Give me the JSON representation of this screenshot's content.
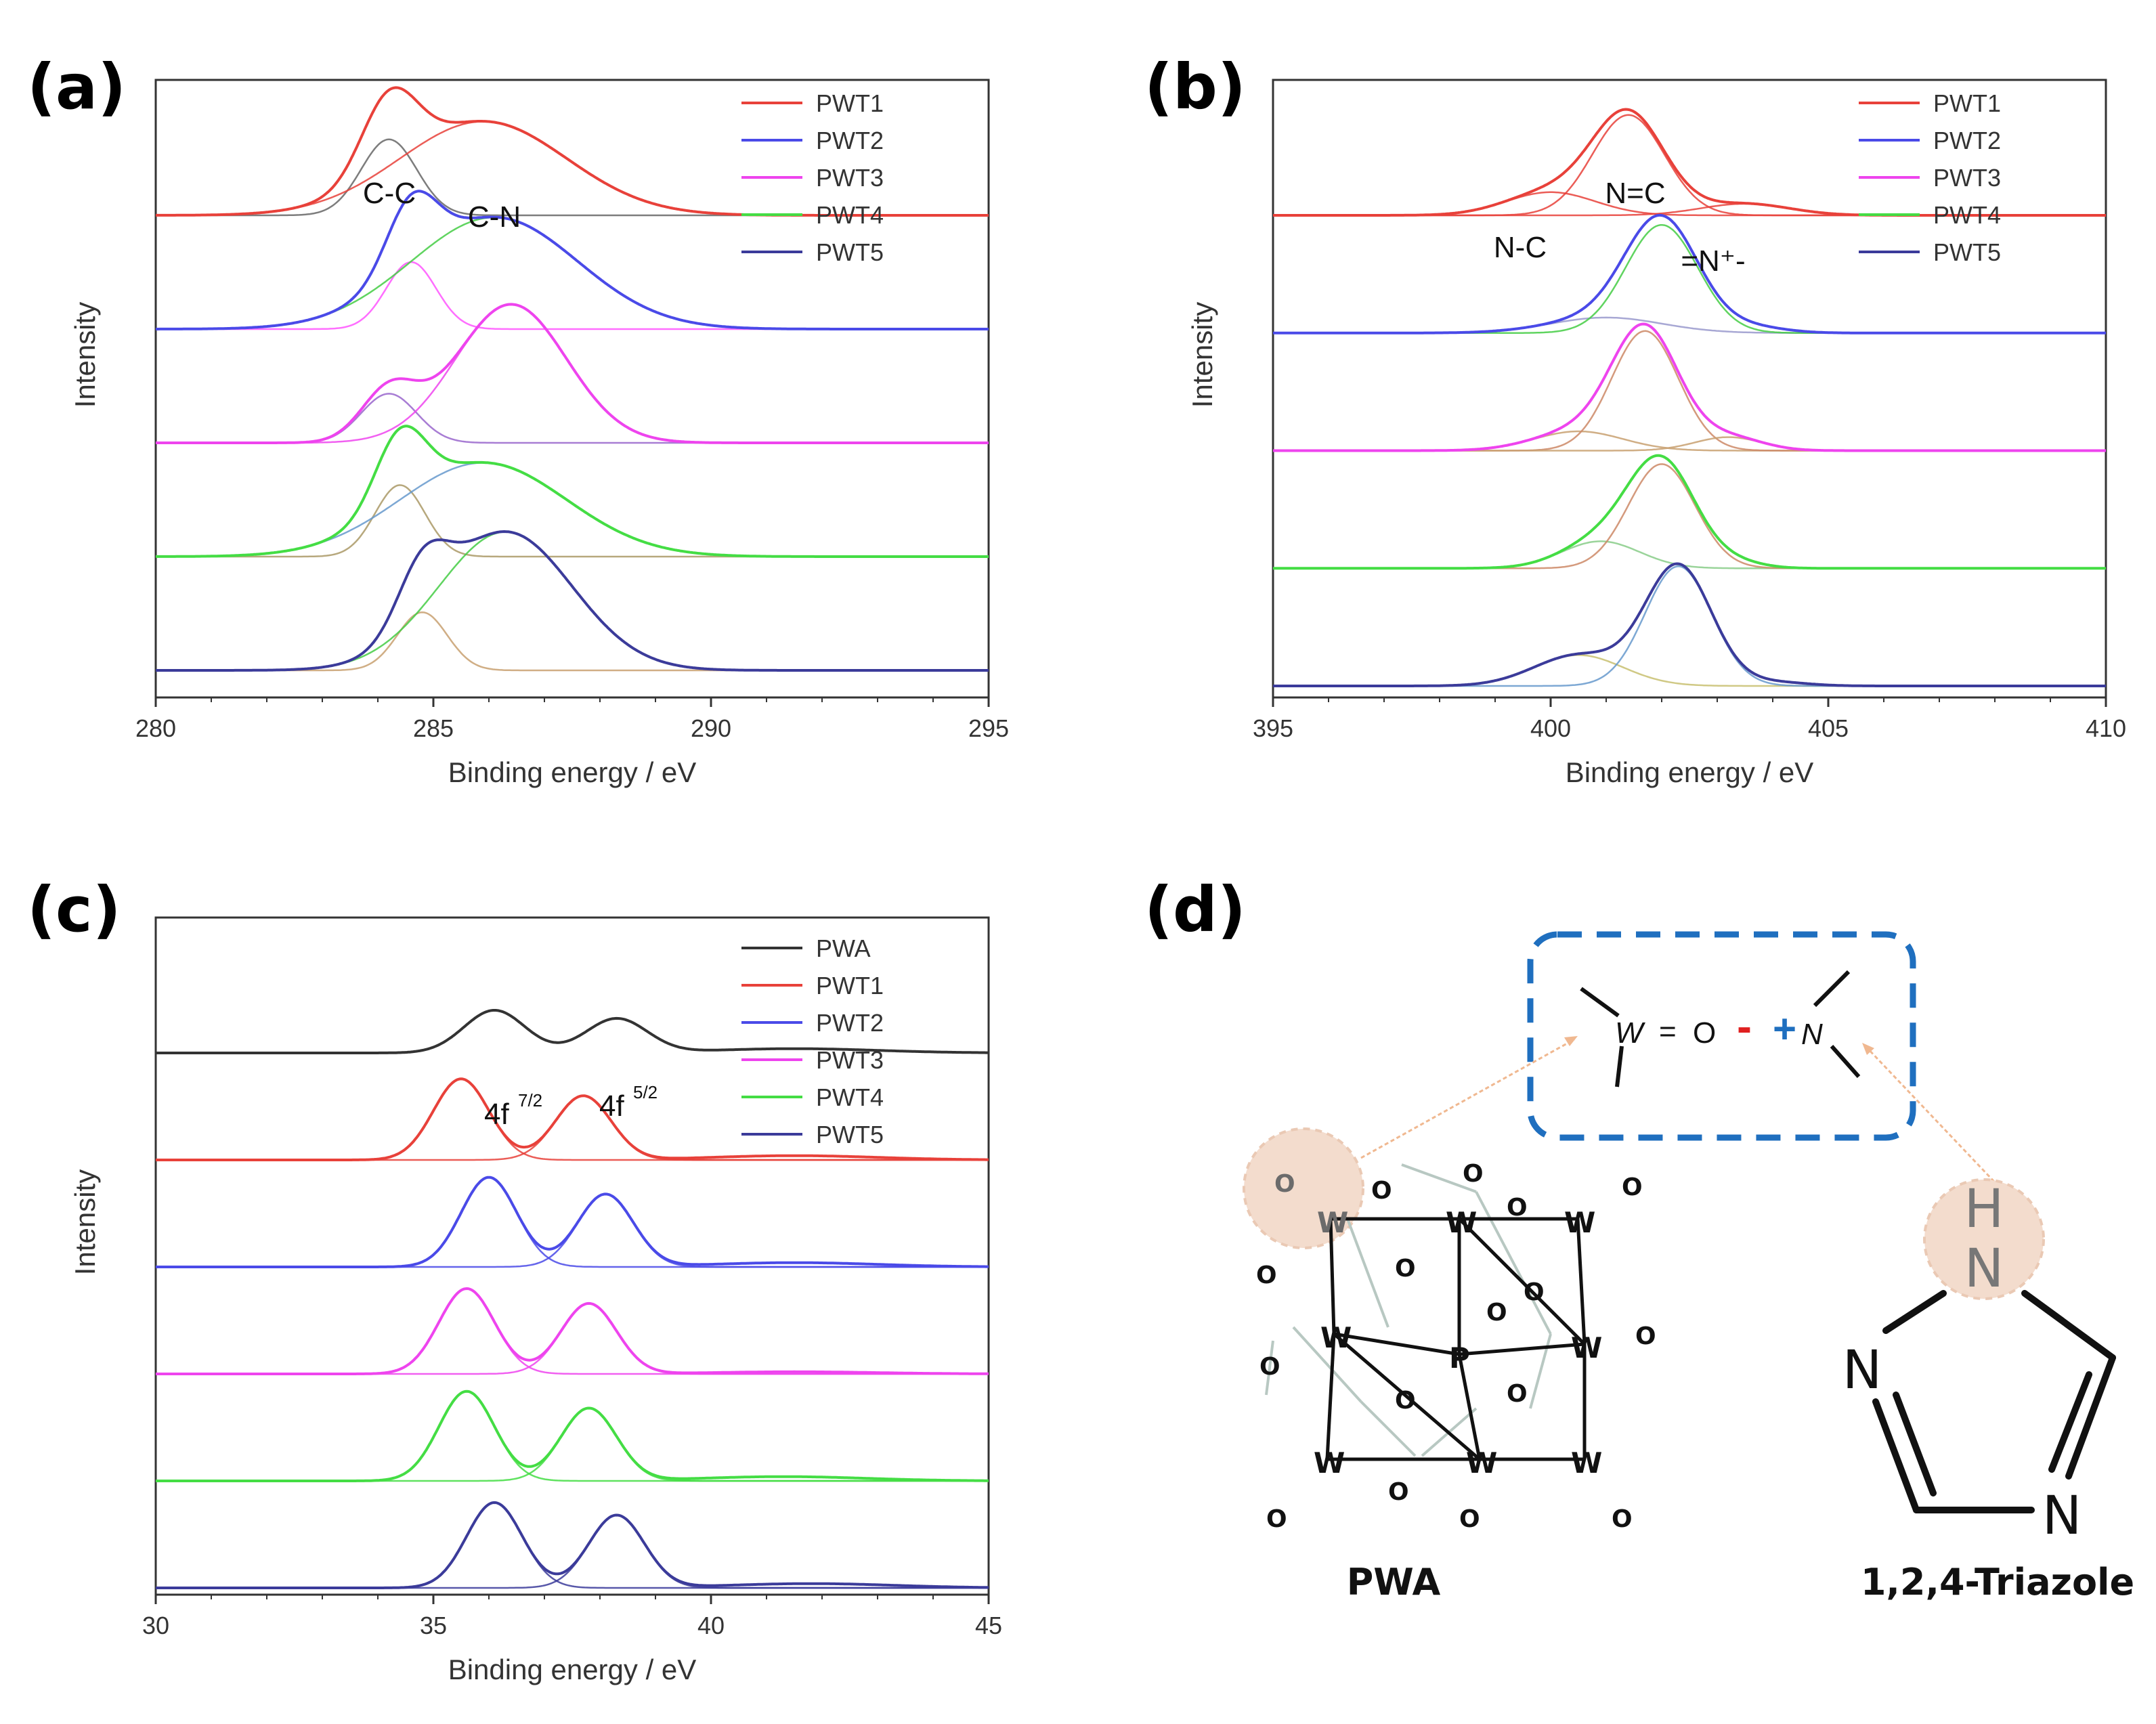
{
  "panels": {
    "a": "(a)",
    "b": "(b)",
    "c": "(c)",
    "d": "(d)"
  },
  "chart_data": [
    {
      "id": "a",
      "type": "line",
      "title": "",
      "xlabel": "Binding energy / eV",
      "ylabel": "Intensity",
      "xlim": [
        280,
        295
      ],
      "xticks": [
        280,
        285,
        290,
        295
      ],
      "annotations": [
        "C-C",
        "C-N"
      ],
      "series": [
        {
          "name": "PWT1",
          "color": "#e8413a",
          "baseline": 1.0,
          "peaks": [
            [
              284.2,
              0.34,
              0.5
            ],
            [
              285.9,
              0.42,
              1.5
            ]
          ],
          "components": [
            [
              284.2,
              0.34,
              0.5,
              "#666666"
            ],
            [
              285.9,
              0.42,
              1.5,
              "#e8413a"
            ]
          ]
        },
        {
          "name": "PWT2",
          "color": "#4a4ae8",
          "baseline": 0.75,
          "peaks": [
            [
              284.6,
              0.3,
              0.45
            ],
            [
              286.1,
              0.5,
              1.5
            ]
          ],
          "components": [
            [
              284.6,
              0.3,
              0.45,
              "#ff55ff"
            ],
            [
              286.1,
              0.5,
              1.5,
              "#44cc44"
            ]
          ]
        },
        {
          "name": "PWT3",
          "color": "#ee44ee",
          "baseline": 0.5,
          "peaks": [
            [
              284.2,
              0.22,
              0.5
            ],
            [
              286.4,
              0.62,
              1.0
            ]
          ],
          "components": [
            [
              284.2,
              0.22,
              0.5,
              "#9966cc"
            ],
            [
              286.4,
              0.62,
              1.0,
              "#ee44ee"
            ]
          ]
        },
        {
          "name": "PWT4",
          "color": "#44dd44",
          "baseline": 0.27,
          "peaks": [
            [
              284.4,
              0.32,
              0.45
            ],
            [
              285.9,
              0.42,
              1.5
            ]
          ],
          "components": [
            [
              284.4,
              0.32,
              0.45,
              "#aa9966"
            ],
            [
              285.9,
              0.42,
              1.5,
              "#6699cc"
            ]
          ]
        },
        {
          "name": "PWT5",
          "color": "#3b3b9a",
          "baseline": 0.0,
          "peaks": [
            [
              284.8,
              0.26,
              0.45
            ],
            [
              286.3,
              0.62,
              1.2
            ]
          ],
          "components": [
            [
              284.8,
              0.26,
              0.45,
              "#c8a070"
            ],
            [
              286.3,
              0.62,
              1.2,
              "#44cc44"
            ]
          ]
        }
      ]
    },
    {
      "id": "b",
      "type": "line",
      "title": "",
      "xlabel": "Binding energy / eV",
      "ylabel": "Intensity",
      "xlim": [
        395,
        410
      ],
      "xticks": [
        395,
        400,
        405,
        410
      ],
      "annotations": [
        "N-C",
        "N=C",
        "=N⁺-"
      ],
      "series": [
        {
          "name": "PWT1",
          "color": "#e8413a",
          "baseline": 1.05,
          "peaks": [
            [
              400.0,
              0.12,
              0.8
            ],
            [
              401.4,
              0.52,
              0.65
            ],
            [
              403.5,
              0.06,
              0.8
            ]
          ],
          "components": [
            [
              400.0,
              0.12,
              0.8,
              "#e8413a"
            ],
            [
              401.4,
              0.52,
              0.65,
              "#e8413a"
            ],
            [
              403.5,
              0.06,
              0.8,
              "#e8413a"
            ]
          ]
        },
        {
          "name": "PWT2",
          "color": "#4a4ae8",
          "baseline": 0.8,
          "peaks": [
            [
              401.0,
              0.08,
              1.0
            ],
            [
              402.0,
              0.56,
              0.65
            ],
            [
              403.6,
              0.03,
              0.6
            ]
          ],
          "components": [
            [
              401.0,
              0.08,
              1.0,
              "#9999cc"
            ],
            [
              402.0,
              0.56,
              0.65,
              "#44cc44"
            ]
          ]
        },
        {
          "name": "PWT3",
          "color": "#ee44ee",
          "baseline": 0.53,
          "peaks": [
            [
              400.5,
              0.1,
              0.8
            ],
            [
              401.7,
              0.62,
              0.6
            ],
            [
              403.2,
              0.07,
              0.6
            ]
          ],
          "components": [
            [
              400.5,
              0.1,
              0.8,
              "#c8a070"
            ],
            [
              401.7,
              0.62,
              0.6,
              "#cc8866"
            ],
            [
              403.2,
              0.07,
              0.6,
              "#c8a070"
            ]
          ]
        },
        {
          "name": "PWT4",
          "color": "#44dd44",
          "baseline": 0.25,
          "peaks": [
            [
              400.9,
              0.14,
              0.7
            ],
            [
              402.0,
              0.54,
              0.6
            ],
            [
              403.3,
              0.03,
              0.5
            ]
          ],
          "components": [
            [
              400.9,
              0.14,
              0.7,
              "#88cc88"
            ],
            [
              402.0,
              0.54,
              0.6,
              "#cc8866"
            ]
          ]
        },
        {
          "name": "PWT5",
          "color": "#3b3b9a",
          "baseline": 0.0,
          "peaks": [
            [
              400.5,
              0.16,
              0.8
            ],
            [
              402.3,
              0.62,
              0.6
            ],
            [
              404.0,
              0.02,
              0.6
            ]
          ],
          "components": [
            [
              400.5,
              0.16,
              0.8,
              "#c8c070"
            ],
            [
              402.3,
              0.62,
              0.6,
              "#6699cc"
            ]
          ]
        }
      ]
    },
    {
      "id": "c",
      "type": "line",
      "title": "",
      "xlabel": "Binding energy / eV",
      "ylabel": "Intensity",
      "xlim": [
        30,
        45
      ],
      "xticks": [
        30,
        35,
        40,
        45
      ],
      "annotations": [
        "4f⁷ᐟ²",
        "4f⁵ᐟ²"
      ],
      "annotation_main": [
        "4f",
        "4f"
      ],
      "annotation_sup": [
        "7/2",
        "5/2"
      ],
      "series": [
        {
          "name": "PWA",
          "color": "#333333",
          "baseline": 1.25,
          "peaks": [
            [
              36.1,
              0.2,
              0.55
            ],
            [
              38.3,
              0.16,
              0.55
            ],
            [
              41.5,
              0.02,
              1.5
            ]
          ],
          "components": []
        },
        {
          "name": "PWT1",
          "color": "#e8413a",
          "baseline": 1.0,
          "peaks": [
            [
              35.5,
              0.38,
              0.5
            ],
            [
              37.7,
              0.3,
              0.5
            ],
            [
              41.5,
              0.02,
              1.5
            ]
          ],
          "components": [
            [
              35.5,
              0.38,
              0.5,
              "#e8413a"
            ],
            [
              37.7,
              0.3,
              0.5,
              "#e8413a"
            ]
          ]
        },
        {
          "name": "PWT2",
          "color": "#4a4ae8",
          "baseline": 0.75,
          "peaks": [
            [
              36.0,
              0.42,
              0.5
            ],
            [
              38.1,
              0.34,
              0.5
            ],
            [
              41.5,
              0.02,
              1.5
            ]
          ],
          "components": [
            [
              36.0,
              0.42,
              0.5,
              "#4a4ae8"
            ],
            [
              38.1,
              0.34,
              0.5,
              "#4a4ae8"
            ]
          ]
        },
        {
          "name": "PWT3",
          "color": "#ee44ee",
          "baseline": 0.5,
          "peaks": [
            [
              35.6,
              0.4,
              0.5
            ],
            [
              37.8,
              0.33,
              0.5
            ],
            [
              41.5,
              0.01,
              1.5
            ]
          ],
          "components": [
            [
              35.6,
              0.4,
              0.5,
              "#ee44ee"
            ],
            [
              37.8,
              0.33,
              0.5,
              "#ee44ee"
            ]
          ]
        },
        {
          "name": "PWT4",
          "color": "#44dd44",
          "baseline": 0.25,
          "peaks": [
            [
              35.6,
              0.42,
              0.5
            ],
            [
              37.8,
              0.34,
              0.5
            ],
            [
              41.3,
              0.02,
              1.5
            ]
          ],
          "components": [
            [
              35.6,
              0.42,
              0.5,
              "#44dd44"
            ],
            [
              37.8,
              0.34,
              0.5,
              "#44dd44"
            ]
          ]
        },
        {
          "name": "PWT5",
          "color": "#3b3b9a",
          "baseline": 0.0,
          "peaks": [
            [
              36.1,
              0.4,
              0.5
            ],
            [
              38.3,
              0.34,
              0.5
            ],
            [
              41.8,
              0.02,
              1.5
            ]
          ],
          "components": [
            [
              36.1,
              0.4,
              0.5,
              "#3b3b9a"
            ],
            [
              38.3,
              0.34,
              0.5,
              "#3b3b9a"
            ]
          ]
        }
      ]
    }
  ],
  "schematic": {
    "pwa_label": "PWA",
    "triazole_label": "1,2,4-Triazole",
    "interaction": {
      "w": "W",
      "eq": "=",
      "o": "O",
      "minus": "-",
      "plus": "+",
      "n": "N"
    },
    "triazole_atoms": {
      "h": "H",
      "n1": "N",
      "n2": "N",
      "n4": "N"
    },
    "pwa_atoms": {
      "w": "W",
      "o": "O",
      "p": "P"
    },
    "colors": {
      "dash_box": "#1f6fbf",
      "minus": "#e02020",
      "plus": "#1f6fbf",
      "highlight": "#f3dccd",
      "arrow": "#f0b890"
    }
  }
}
